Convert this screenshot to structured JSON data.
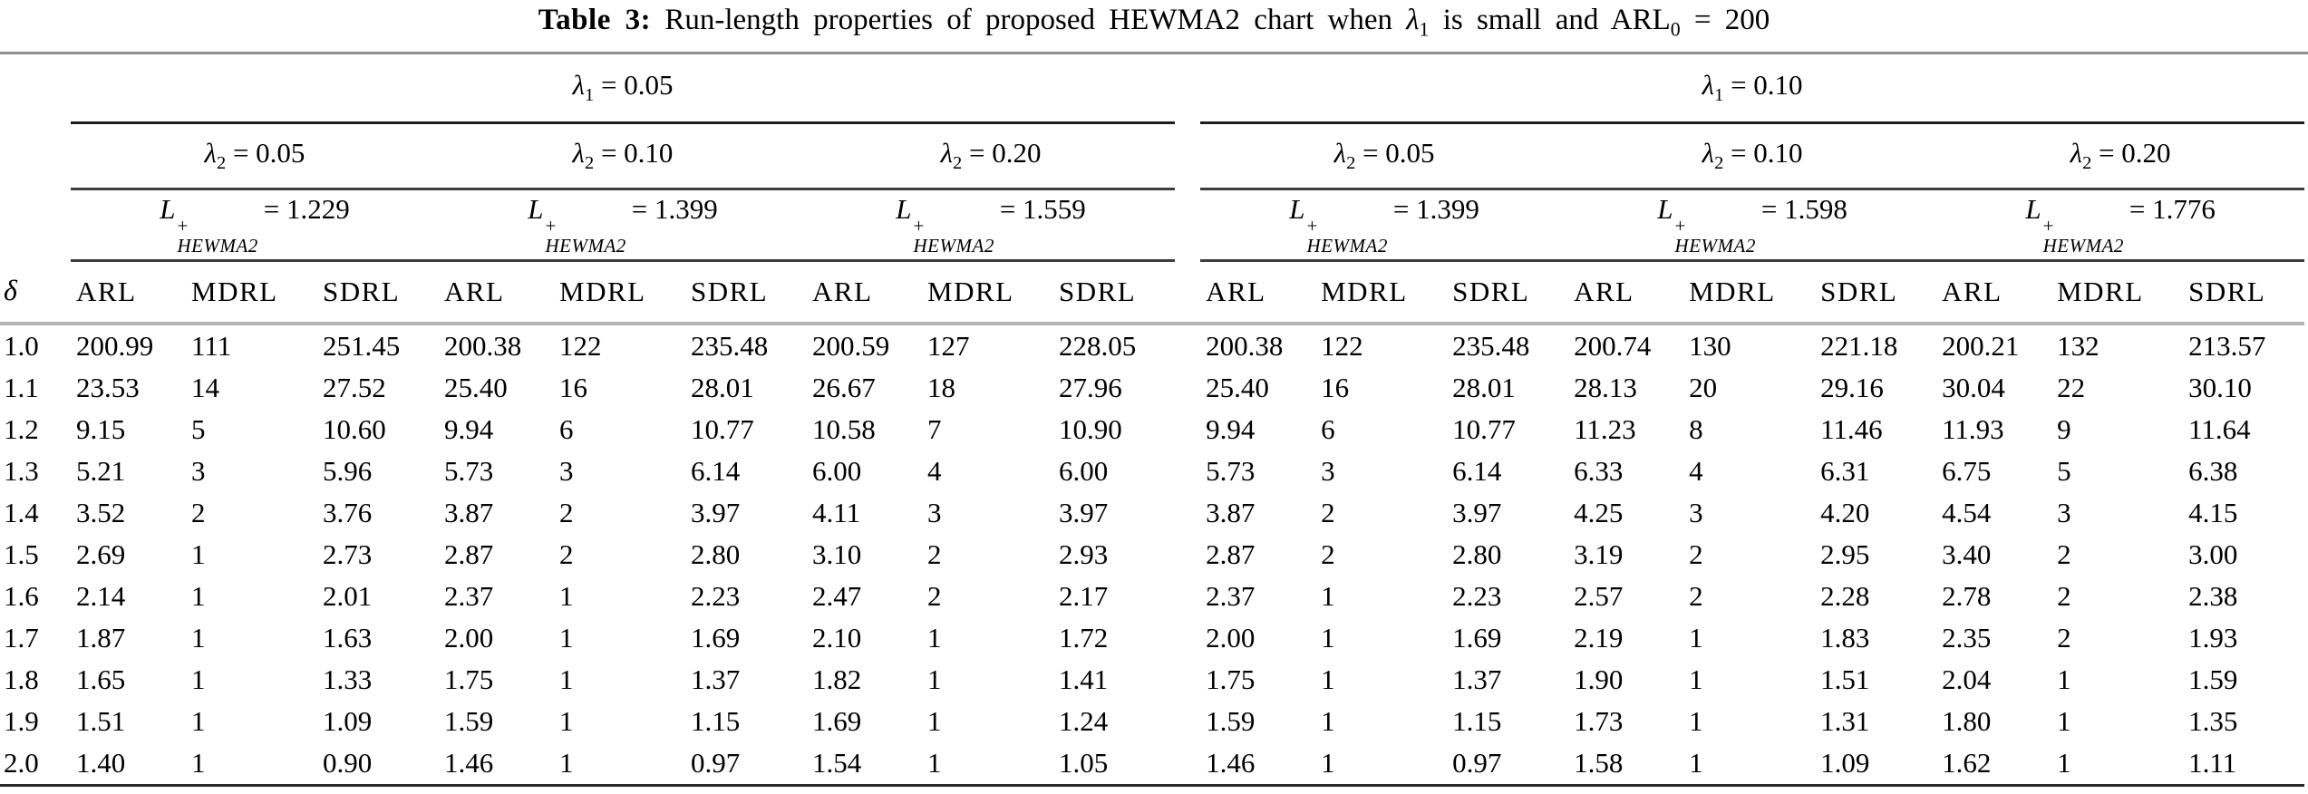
{
  "title": {
    "bold": "Table 3:",
    "text_before_lambda": "Run-length properties of proposed HEWMA2 chart when",
    "lambda_symbol": "λ",
    "lambda_subscript": "1",
    "text_after_lambda": "is small and ARL",
    "arl_subscript": "0",
    "text_end": "= 200"
  },
  "header": {
    "lambda_symbol": "λ",
    "lambda1_subscript": "1",
    "lambda2_subscript": "2",
    "L_symbol": "L",
    "L_superscript": "+",
    "L_subscript": "HEWMA2",
    "halves": [
      {
        "lambda1": "= 0.05",
        "groups": [
          {
            "lambda2": "= 0.05",
            "L_value": "= 1.229"
          },
          {
            "lambda2": "= 0.10",
            "L_value": "= 1.399"
          },
          {
            "lambda2": "= 0.20",
            "L_value": "= 1.559"
          }
        ]
      },
      {
        "lambda1": "= 0.10",
        "groups": [
          {
            "lambda2": "= 0.05",
            "L_value": "= 1.399"
          },
          {
            "lambda2": "= 0.10",
            "L_value": "= 1.598"
          },
          {
            "lambda2": "= 0.20",
            "L_value": "= 1.776"
          }
        ]
      }
    ]
  },
  "columns": {
    "delta_header": "δ",
    "measures": [
      "ARL",
      "MDRL",
      "SDRL"
    ],
    "group_count": 6
  },
  "rows": [
    {
      "delta": "1.0",
      "values": [
        "200.99",
        "111",
        "251.45",
        "200.38",
        "122",
        "235.48",
        "200.59",
        "127",
        "228.05",
        "200.38",
        "122",
        "235.48",
        "200.74",
        "130",
        "221.18",
        "200.21",
        "132",
        "213.57"
      ]
    },
    {
      "delta": "1.1",
      "values": [
        "23.53",
        "14",
        "27.52",
        "25.40",
        "16",
        "28.01",
        "26.67",
        "18",
        "27.96",
        "25.40",
        "16",
        "28.01",
        "28.13",
        "20",
        "29.16",
        "30.04",
        "22",
        "30.10"
      ]
    },
    {
      "delta": "1.2",
      "values": [
        "9.15",
        "5",
        "10.60",
        "9.94",
        "6",
        "10.77",
        "10.58",
        "7",
        "10.90",
        "9.94",
        "6",
        "10.77",
        "11.23",
        "8",
        "11.46",
        "11.93",
        "9",
        "11.64"
      ]
    },
    {
      "delta": "1.3",
      "values": [
        "5.21",
        "3",
        "5.96",
        "5.73",
        "3",
        "6.14",
        "6.00",
        "4",
        "6.00",
        "5.73",
        "3",
        "6.14",
        "6.33",
        "4",
        "6.31",
        "6.75",
        "5",
        "6.38"
      ]
    },
    {
      "delta": "1.4",
      "values": [
        "3.52",
        "2",
        "3.76",
        "3.87",
        "2",
        "3.97",
        "4.11",
        "3",
        "3.97",
        "3.87",
        "2",
        "3.97",
        "4.25",
        "3",
        "4.20",
        "4.54",
        "3",
        "4.15"
      ]
    },
    {
      "delta": "1.5",
      "values": [
        "2.69",
        "1",
        "2.73",
        "2.87",
        "2",
        "2.80",
        "3.10",
        "2",
        "2.93",
        "2.87",
        "2",
        "2.80",
        "3.19",
        "2",
        "2.95",
        "3.40",
        "2",
        "3.00"
      ]
    },
    {
      "delta": "1.6",
      "values": [
        "2.14",
        "1",
        "2.01",
        "2.37",
        "1",
        "2.23",
        "2.47",
        "2",
        "2.17",
        "2.37",
        "1",
        "2.23",
        "2.57",
        "2",
        "2.28",
        "2.78",
        "2",
        "2.38"
      ]
    },
    {
      "delta": "1.7",
      "values": [
        "1.87",
        "1",
        "1.63",
        "2.00",
        "1",
        "1.69",
        "2.10",
        "1",
        "1.72",
        "2.00",
        "1",
        "1.69",
        "2.19",
        "1",
        "1.83",
        "2.35",
        "2",
        "1.93"
      ]
    },
    {
      "delta": "1.8",
      "values": [
        "1.65",
        "1",
        "1.33",
        "1.75",
        "1",
        "1.37",
        "1.82",
        "1",
        "1.41",
        "1.75",
        "1",
        "1.37",
        "1.90",
        "1",
        "1.51",
        "2.04",
        "1",
        "1.59"
      ]
    },
    {
      "delta": "1.9",
      "values": [
        "1.51",
        "1",
        "1.09",
        "1.59",
        "1",
        "1.15",
        "1.69",
        "1",
        "1.24",
        "1.59",
        "1",
        "1.15",
        "1.73",
        "1",
        "1.31",
        "1.80",
        "1",
        "1.35"
      ]
    },
    {
      "delta": "2.0",
      "values": [
        "1.40",
        "1",
        "0.90",
        "1.46",
        "1",
        "0.97",
        "1.54",
        "1",
        "1.05",
        "1.46",
        "1",
        "0.97",
        "1.58",
        "1",
        "1.09",
        "1.62",
        "1",
        "1.11"
      ]
    }
  ]
}
